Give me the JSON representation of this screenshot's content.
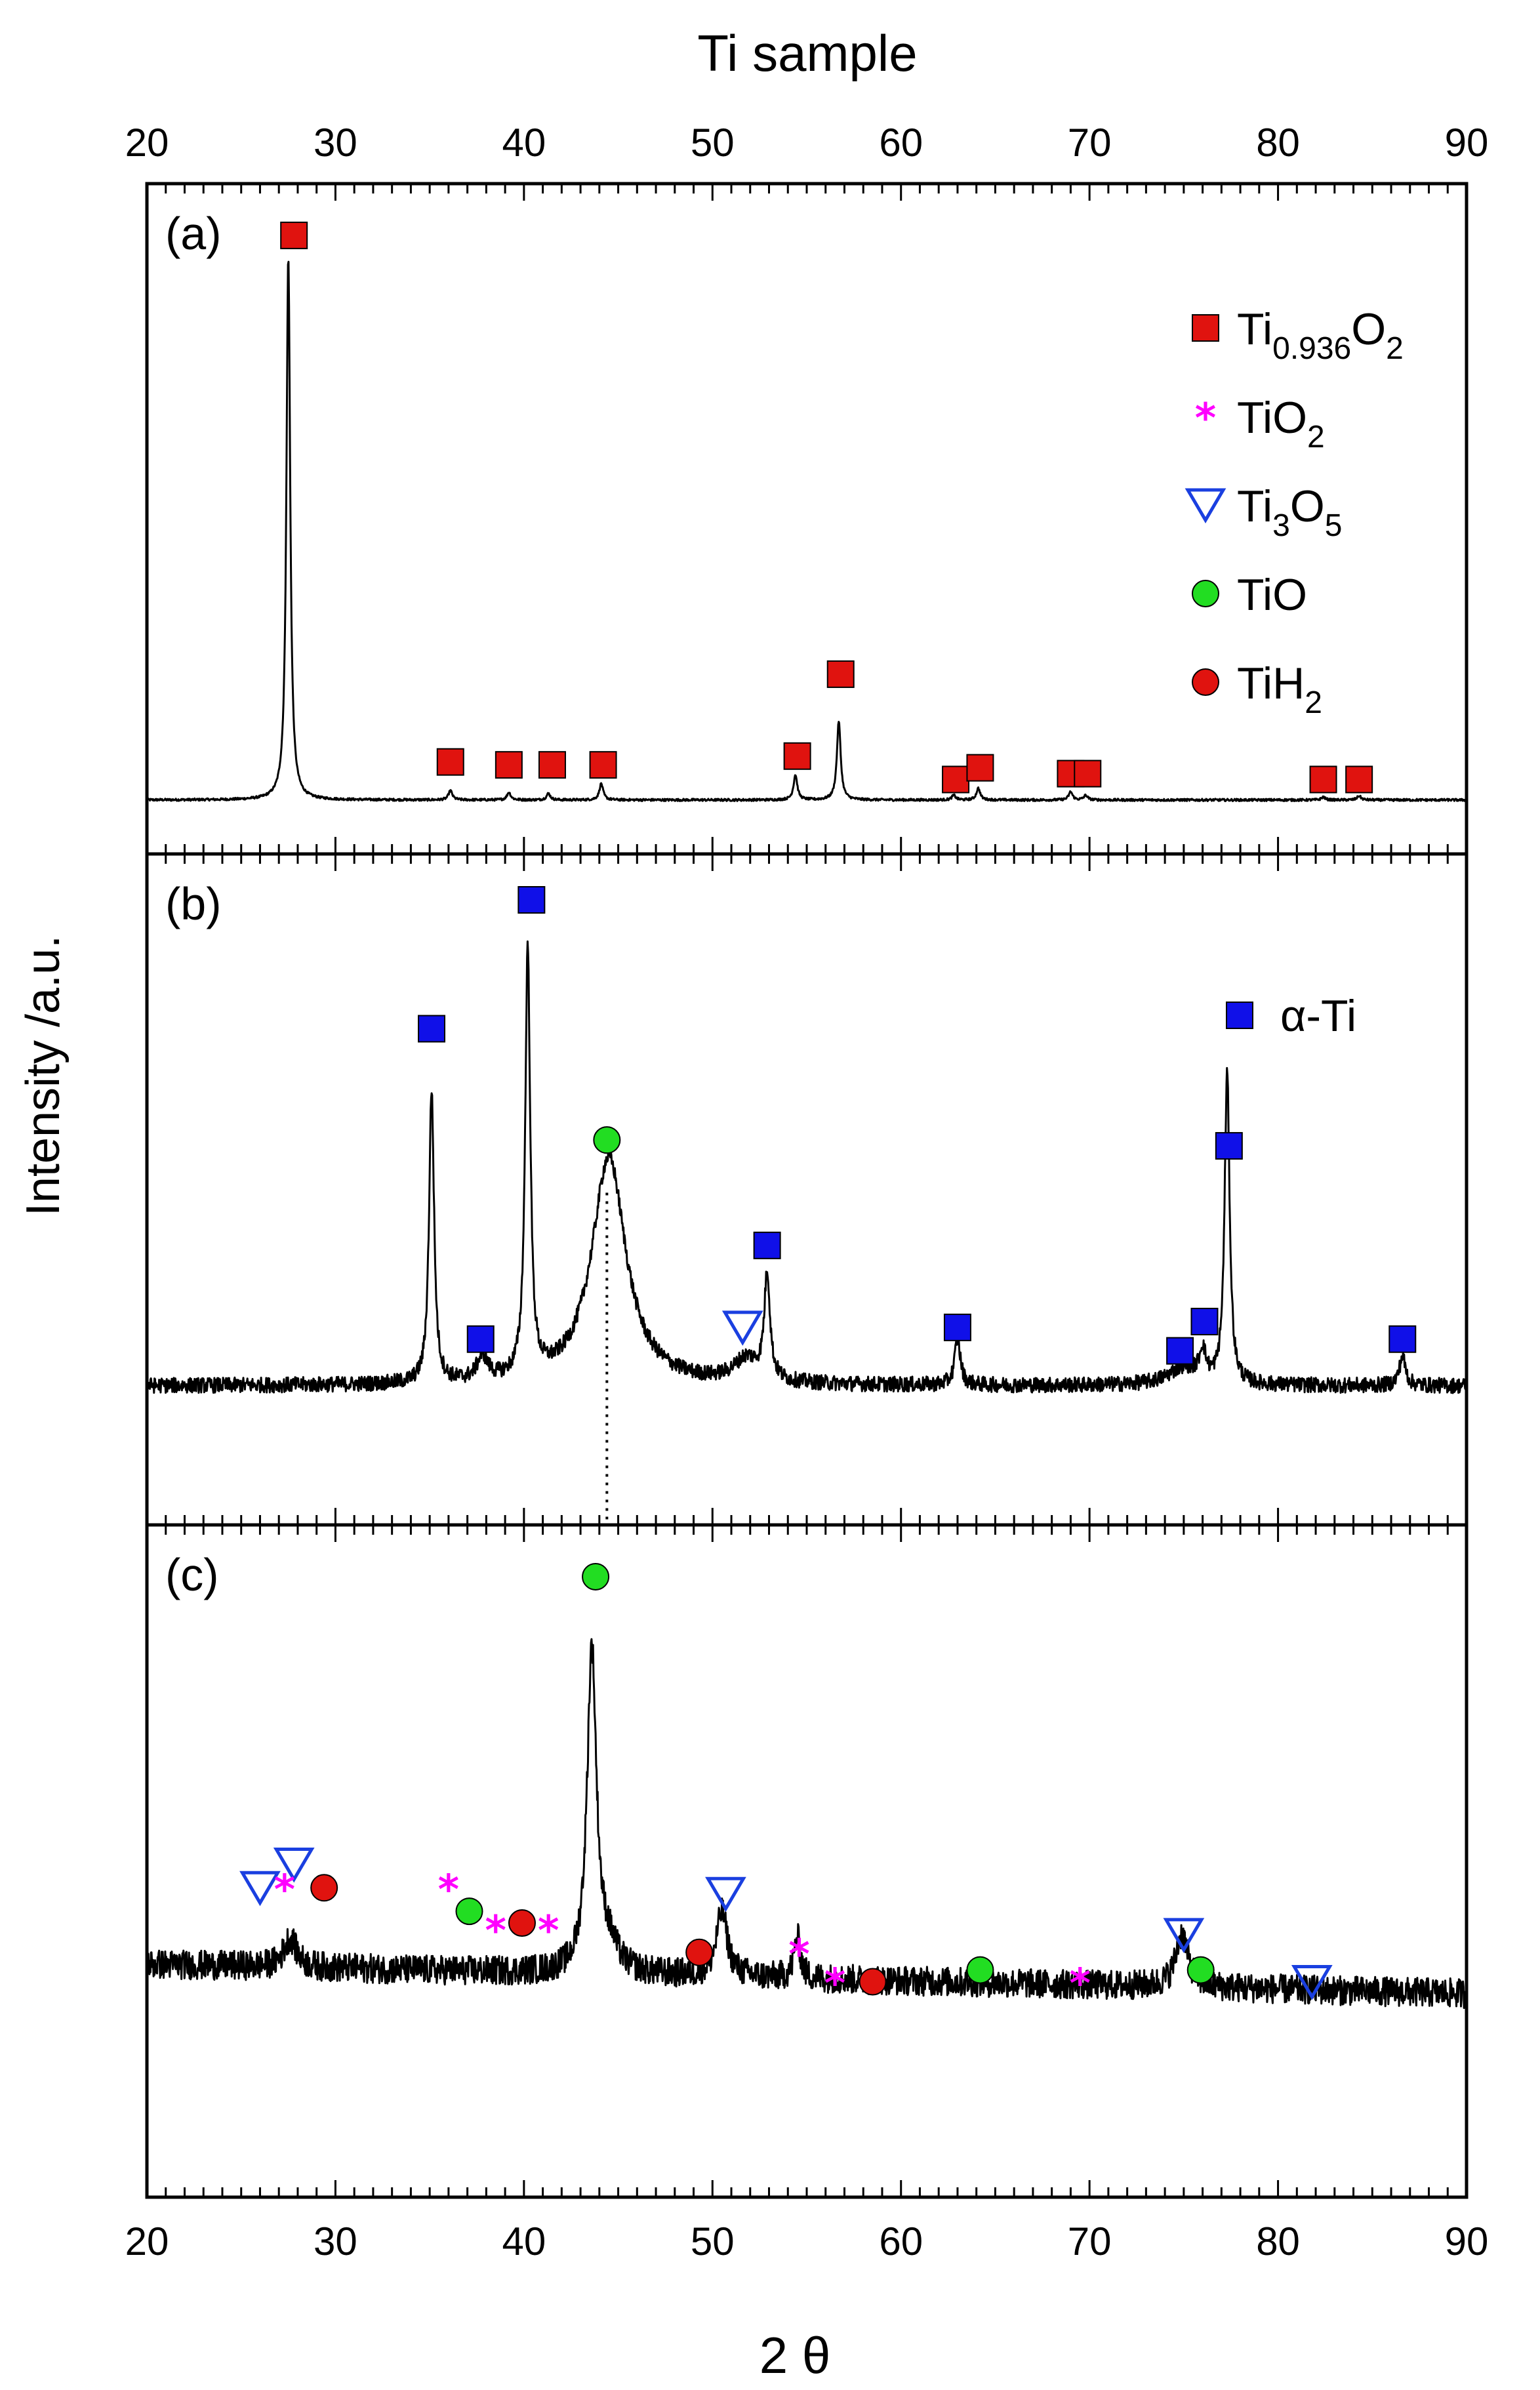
{
  "chart_data": {
    "type": "line",
    "title": "Ti sample",
    "xlabel": "2 θ",
    "ylabel": "Intensity /a.u.",
    "xlim": [
      20,
      90
    ],
    "xticks": [
      20,
      30,
      40,
      50,
      60,
      70,
      80,
      90
    ],
    "grid": false,
    "colors": {
      "line": "#000000",
      "red_square": "#e0130f",
      "blue_square": "#1010e8",
      "magenta_star": "#ff00ff",
      "blue_triangle": "#1a3fe0",
      "green_circle": "#22dd22",
      "red_circle": "#e0130f"
    },
    "panels": [
      {
        "label": "(a)",
        "ylim": [
          0,
          100
        ],
        "baseline": 2.5,
        "noise": 0.2,
        "peaks": [
          {
            "x": 27.5,
            "h": 93,
            "w": 0.12
          },
          {
            "x": 36.1,
            "h": 1.6,
            "w": 0.12
          },
          {
            "x": 39.2,
            "h": 1.3,
            "w": 0.12
          },
          {
            "x": 41.3,
            "h": 1.1,
            "w": 0.12
          },
          {
            "x": 44.1,
            "h": 2.8,
            "w": 0.12
          },
          {
            "x": 54.4,
            "h": 4.3,
            "w": 0.12
          },
          {
            "x": 56.7,
            "h": 13.5,
            "w": 0.12
          },
          {
            "x": 62.8,
            "h": 0.8,
            "w": 0.12
          },
          {
            "x": 64.1,
            "h": 2.0,
            "w": 0.12
          },
          {
            "x": 69.0,
            "h": 1.4,
            "w": 0.12
          },
          {
            "x": 69.8,
            "h": 0.8,
            "w": 0.12
          },
          {
            "x": 82.4,
            "h": 0.5,
            "w": 0.12
          },
          {
            "x": 84.3,
            "h": 0.7,
            "w": 0.12
          }
        ],
        "markers": [
          {
            "type": "square",
            "color": "red",
            "x": 27.8,
            "y": 99
          },
          {
            "type": "square",
            "color": "red",
            "x": 36.1,
            "y": 9
          },
          {
            "type": "square",
            "color": "red",
            "x": 39.2,
            "y": 8.5
          },
          {
            "type": "square",
            "color": "red",
            "x": 41.5,
            "y": 8.5
          },
          {
            "type": "square",
            "color": "red",
            "x": 44.2,
            "y": 8.5
          },
          {
            "type": "square",
            "color": "red",
            "x": 54.5,
            "y": 10
          },
          {
            "type": "square",
            "color": "red",
            "x": 56.8,
            "y": 24
          },
          {
            "type": "square",
            "color": "red",
            "x": 62.9,
            "y": 6
          },
          {
            "type": "square",
            "color": "red",
            "x": 64.2,
            "y": 8
          },
          {
            "type": "square",
            "color": "red",
            "x": 69.0,
            "y": 7
          },
          {
            "type": "square",
            "color": "red",
            "x": 69.9,
            "y": 7
          },
          {
            "type": "square",
            "color": "red",
            "x": 82.4,
            "y": 6
          },
          {
            "type": "square",
            "color": "red",
            "x": 84.3,
            "y": 6
          }
        ]
      },
      {
        "label": "(b)",
        "ylim": [
          0,
          100
        ],
        "baseline": 17,
        "noise": 1.3,
        "peaks": [
          {
            "x": 35.1,
            "h": 50,
            "w": 0.16
          },
          {
            "x": 37.8,
            "h": 4,
            "w": 0.35
          },
          {
            "x": 40.2,
            "h": 73,
            "w": 0.16
          },
          {
            "x": 44.5,
            "h": 39,
            "w": 1.1
          },
          {
            "x": 51.8,
            "h": 4,
            "w": 0.8
          },
          {
            "x": 52.9,
            "h": 18,
            "w": 0.18
          },
          {
            "x": 63.0,
            "h": 8,
            "w": 0.18
          },
          {
            "x": 75.0,
            "h": 3,
            "w": 1.0
          },
          {
            "x": 76.0,
            "h": 5,
            "w": 0.2
          },
          {
            "x": 77.3,
            "h": 53,
            "w": 0.16
          },
          {
            "x": 86.6,
            "h": 5,
            "w": 0.2
          }
        ],
        "markers": [
          {
            "type": "square",
            "color": "blue",
            "x": 35.1,
            "y": 78
          },
          {
            "type": "square",
            "color": "blue",
            "x": 37.7,
            "y": 25
          },
          {
            "type": "square",
            "color": "blue",
            "x": 40.4,
            "y": 100
          },
          {
            "type": "circle",
            "color": "green",
            "x": 44.4,
            "y": 59
          },
          {
            "type": "triangle",
            "color": "blue",
            "x": 51.6,
            "y": 27
          },
          {
            "type": "square",
            "color": "blue",
            "x": 52.9,
            "y": 41
          },
          {
            "type": "square",
            "color": "blue",
            "x": 63.0,
            "y": 27
          },
          {
            "type": "square",
            "color": "blue",
            "x": 74.8,
            "y": 23
          },
          {
            "type": "square",
            "color": "blue",
            "x": 76.1,
            "y": 28
          },
          {
            "type": "square",
            "color": "blue",
            "x": 77.4,
            "y": 58
          },
          {
            "type": "square",
            "color": "blue",
            "x": 86.6,
            "y": 25
          }
        ],
        "dotted_x": 44.4,
        "dotted_y_top": 50
      },
      {
        "label": "(c)",
        "ylim": [
          0,
          100
        ],
        "baseline": 33,
        "noise": 2.5,
        "tilt": -5,
        "peaks": [
          {
            "x": 27.6,
            "h": 5,
            "w": 0.4
          },
          {
            "x": 43.6,
            "h": 55,
            "w": 0.3
          },
          {
            "x": 44.5,
            "h": 4,
            "w": 0.6
          },
          {
            "x": 50.5,
            "h": 11,
            "w": 0.35
          },
          {
            "x": 54.5,
            "h": 7,
            "w": 0.2
          },
          {
            "x": 74.9,
            "h": 9,
            "w": 0.4
          }
        ],
        "markers": [
          {
            "type": "triangle",
            "color": "blue",
            "x": 26.0,
            "y": 46
          },
          {
            "type": "triangle",
            "color": "blue",
            "x": 27.8,
            "y": 50
          },
          {
            "type": "star",
            "color": "magenta",
            "x": 27.3,
            "y": 46
          },
          {
            "type": "circle",
            "color": "red",
            "x": 29.4,
            "y": 46
          },
          {
            "type": "star",
            "color": "magenta",
            "x": 36.0,
            "y": 46
          },
          {
            "type": "circle",
            "color": "green",
            "x": 37.1,
            "y": 42
          },
          {
            "type": "star",
            "color": "magenta",
            "x": 38.5,
            "y": 39
          },
          {
            "type": "circle",
            "color": "red",
            "x": 39.9,
            "y": 40
          },
          {
            "type": "star",
            "color": "magenta",
            "x": 41.3,
            "y": 39
          },
          {
            "type": "circle",
            "color": "green",
            "x": 43.8,
            "y": 99
          },
          {
            "type": "circle",
            "color": "red",
            "x": 49.3,
            "y": 35
          },
          {
            "type": "triangle",
            "color": "blue",
            "x": 50.7,
            "y": 45
          },
          {
            "type": "star",
            "color": "magenta",
            "x": 54.6,
            "y": 35
          },
          {
            "type": "star",
            "color": "magenta",
            "x": 56.5,
            "y": 30
          },
          {
            "type": "circle",
            "color": "red",
            "x": 58.5,
            "y": 30
          },
          {
            "type": "circle",
            "color": "green",
            "x": 64.2,
            "y": 32
          },
          {
            "type": "star",
            "color": "magenta",
            "x": 69.5,
            "y": 30
          },
          {
            "type": "triangle",
            "color": "blue",
            "x": 75.0,
            "y": 38
          },
          {
            "type": "circle",
            "color": "green",
            "x": 75.9,
            "y": 32
          },
          {
            "type": "triangle",
            "color": "blue",
            "x": 81.8,
            "y": 30
          }
        ]
      }
    ],
    "legend": [
      {
        "type": "square",
        "color": "red",
        "label_main": "Ti",
        "label_sub1": "0.936",
        "label_mid": "O",
        "label_sub2": "2"
      },
      {
        "type": "star",
        "color": "magenta",
        "label_main": "TiO",
        "label_sub1": "2",
        "label_mid": "",
        "label_sub2": ""
      },
      {
        "type": "triangle",
        "color": "blue",
        "label_main": "Ti",
        "label_sub1": "3",
        "label_mid": "O",
        "label_sub2": "5"
      },
      {
        "type": "circle",
        "color": "green",
        "label_main": "TiO",
        "label_sub1": "",
        "label_mid": "",
        "label_sub2": ""
      },
      {
        "type": "circle",
        "color": "red",
        "label_main": "TiH",
        "label_sub1": "2",
        "label_mid": "",
        "label_sub2": ""
      }
    ],
    "legend_b": {
      "type": "square",
      "color": "blue",
      "label": "α-Ti"
    }
  }
}
